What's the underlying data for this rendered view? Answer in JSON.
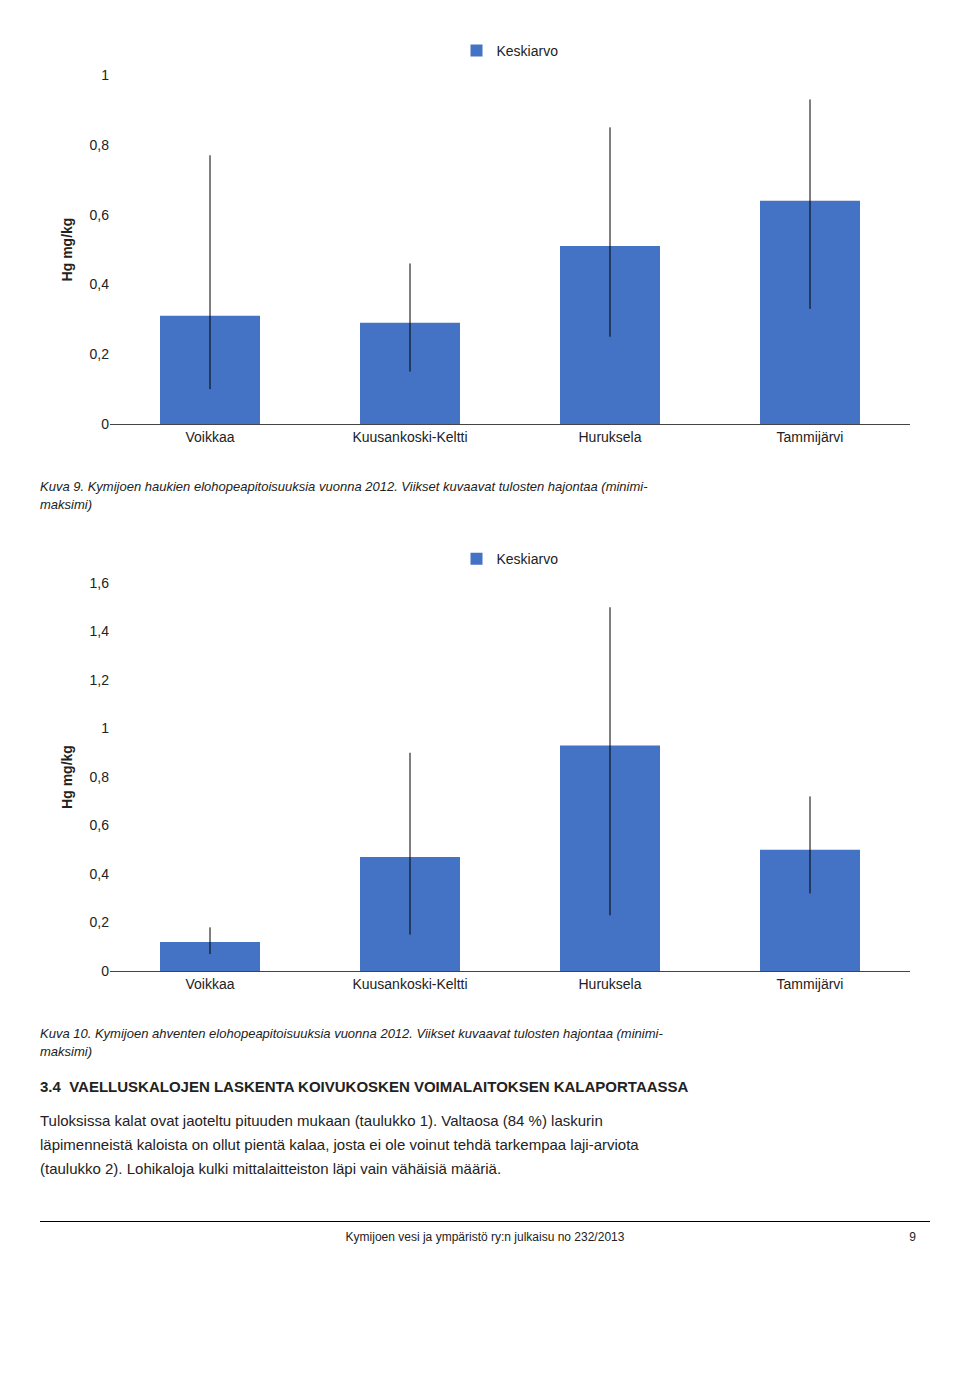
{
  "chart_data": [
    {
      "type": "bar",
      "categories": [
        "Voikkaa",
        "Kuusankoski-Keltti",
        "Huruksela",
        "Tammijärvi"
      ],
      "series": [
        {
          "name": "Keskiarvo",
          "color": "#4472C4",
          "values": [
            0.31,
            0.29,
            0.51,
            0.64
          ],
          "errors_low": [
            0.21,
            0.14,
            0.26,
            0.31
          ],
          "errors_high": [
            0.46,
            0.17,
            0.34,
            0.29
          ]
        }
      ],
      "ylabel": "Hg mg/kg",
      "ylim": [
        0,
        1.0
      ],
      "yticks": [
        0,
        {
          "value": 0.2,
          "label": "0,2"
        },
        {
          "value": 0.4,
          "label": "0,4"
        },
        {
          "value": 0.6,
          "label": "0,6"
        },
        {
          "value": 0.8,
          "label": "0,8"
        },
        1
      ],
      "grid": false,
      "legend": "top",
      "annotations": [
        "Kuva 9. Kymijoen haukien elohopeapitoisuuksia vuonna 2012. Viikset kuvaavat tulosten hajontaa (minimi-\nmaksimi)"
      ]
    },
    {
      "type": "bar",
      "categories": [
        "Voikkaa",
        "Kuusankoski-Keltti",
        "Huruksela",
        "Tammijärvi"
      ],
      "series": [
        {
          "name": "Keskiarvo",
          "color": "#4472C4",
          "values": [
            0.12,
            0.47,
            0.93,
            0.5
          ],
          "errors_low": [
            0.05,
            0.32,
            0.7,
            0.18
          ],
          "errors_high": [
            0.06,
            0.43,
            0.57,
            0.22
          ]
        }
      ],
      "ylabel": "Hg mg/kg",
      "ylim": [
        0,
        1.6
      ],
      "yticks": [
        0,
        {
          "value": 0.2,
          "label": "0,2"
        },
        {
          "value": 0.4,
          "label": "0,4"
        },
        {
          "value": 0.6,
          "label": "0,6"
        },
        {
          "value": 0.8,
          "label": "0,8"
        },
        1,
        {
          "value": 1.2,
          "label": "1,2"
        },
        {
          "value": 1.4,
          "label": "1,4"
        },
        {
          "value": 1.6,
          "label": "1,6"
        }
      ],
      "grid": false,
      "legend": "top",
      "annotations": [
        "Kuva 10. Kymijoen ahventen elohopeapitoisuuksia vuonna 2012. Viikset kuvaavat tulosten hajontaa (minimi-\nmaksimi)"
      ]
    }
  ],
  "section_title": "3.4  VAELLUSKALOJEN LASKENTA KOIVUKOSKEN VOIMALAITOKSEN KALAPORTAASSA",
  "body_text": "Tuloksissa kalat ovat jaoteltu pituuden mukaan (taulukko 1). Valtaosa (84 %) laskurin\nläpimenneistä kaloista on ollut pientä kalaa, josta ei ole voinut tehdä tarkempaa laji-arviota\n(taulukko 2). Lohikaloja kulki mittalaitteiston läpi vain vähäisiä määriä.",
  "footer_text": "Kymijoen vesi ja ympäristö ry:n julkaisu no 232/2013",
  "footer_page": "9"
}
